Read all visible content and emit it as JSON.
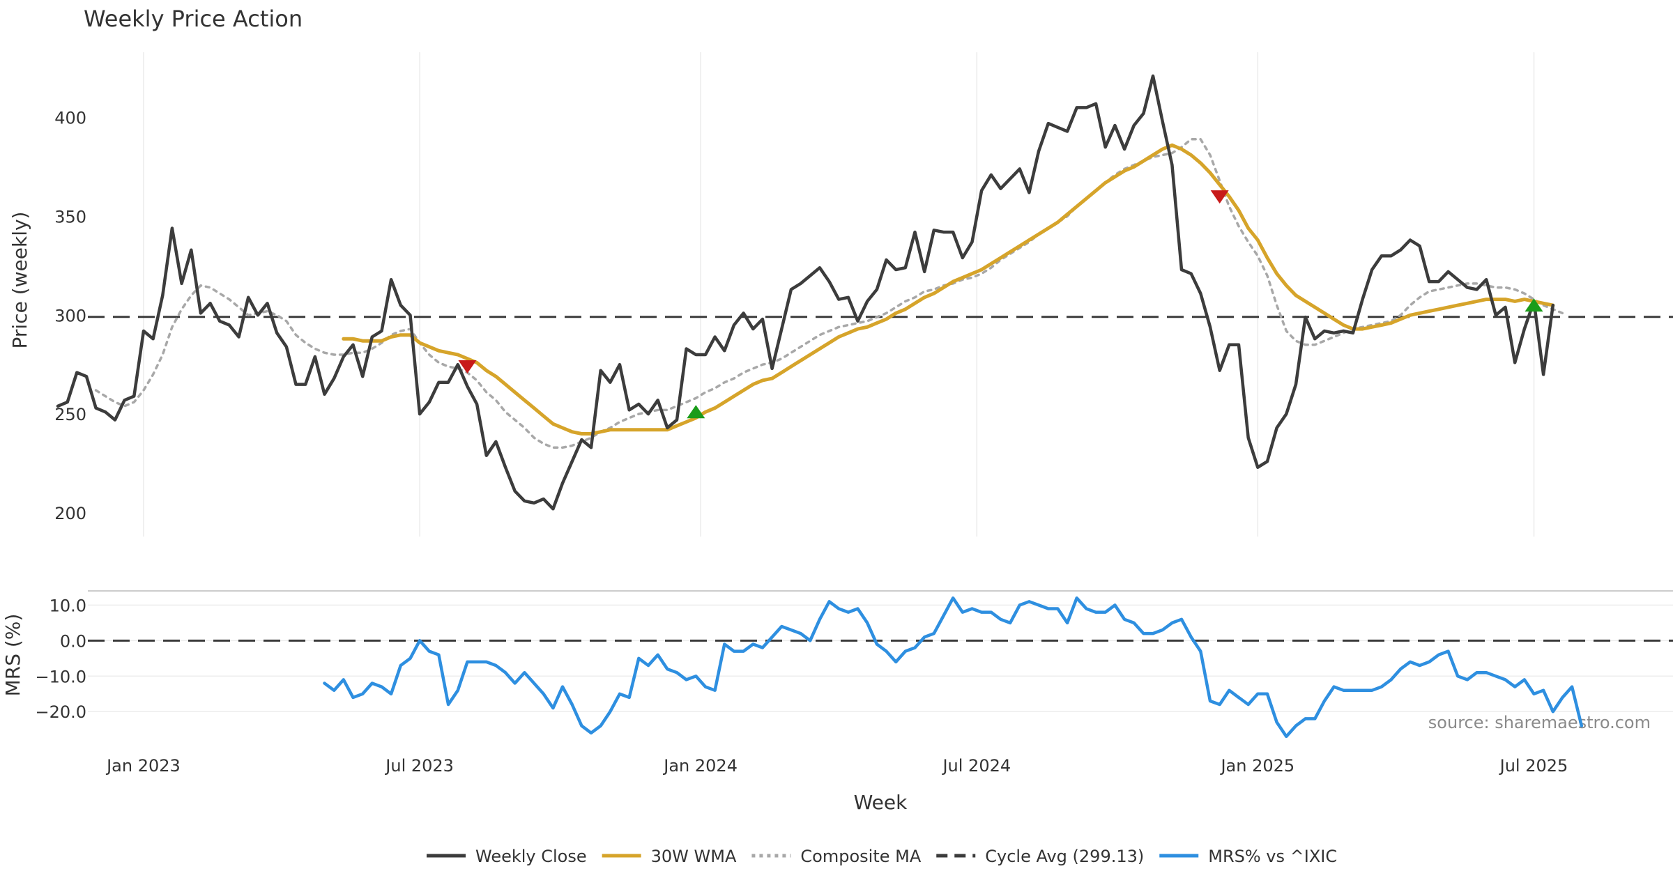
{
  "chart_data": [
    {
      "type": "line",
      "title": "Weekly Price Action",
      "xlabel": "",
      "ylabel": "Price (weekly)",
      "ylim": [
        188,
        433
      ],
      "yticks": [
        200,
        250,
        300,
        350,
        400
      ],
      "xlim": [
        0,
        183
      ],
      "x_ticks": [
        {
          "x": 9,
          "label": "Jan 2023"
        },
        {
          "x": 38,
          "label": "Jul 2023"
        },
        {
          "x": 67.5,
          "label": "Jan 2024"
        },
        {
          "x": 96.5,
          "label": "Jul 2024"
        },
        {
          "x": 126,
          "label": "Jan 2025"
        },
        {
          "x": 155,
          "label": "Jul 2025"
        }
      ],
      "series": [
        {
          "name": "Weekly Close",
          "color": "#3c3c3c",
          "style": "solid",
          "values": [
            254,
            256,
            271,
            269,
            253,
            251,
            247,
            257,
            259,
            292,
            288,
            310,
            344,
            316,
            333,
            301,
            306,
            297,
            295,
            289,
            309,
            300,
            306,
            291,
            284,
            265,
            265,
            279,
            260,
            268,
            279,
            285,
            269,
            289,
            292,
            318,
            305,
            300,
            250,
            256,
            266,
            266,
            275,
            264,
            255,
            229,
            236,
            223,
            211,
            206,
            205,
            207,
            202,
            215,
            226,
            237,
            233,
            272,
            266,
            275,
            252,
            255,
            250,
            257,
            243,
            247,
            283,
            280,
            280,
            289,
            282,
            295,
            301,
            293,
            298,
            273,
            293,
            313,
            316,
            320,
            324,
            317,
            308,
            309,
            297,
            307,
            313,
            328,
            323,
            324,
            342,
            322,
            343,
            342,
            342,
            329,
            337,
            363,
            371,
            364,
            369,
            374,
            362,
            383,
            397,
            395,
            393,
            405,
            405,
            407,
            385,
            396,
            384,
            396,
            402,
            421,
            398,
            376,
            323,
            321,
            311,
            294,
            272,
            285,
            285,
            238,
            223,
            226,
            243,
            250,
            265,
            299,
            288,
            292,
            291,
            292,
            291,
            308,
            323,
            330,
            330,
            333,
            338,
            335,
            317,
            317,
            322,
            318,
            314,
            313,
            318,
            300,
            304,
            276,
            293,
            307,
            270,
            305
          ]
        },
        {
          "name": "30W WMA",
          "color": "#d6a42a",
          "style": "solid",
          "values": [
            null,
            null,
            null,
            null,
            null,
            null,
            null,
            null,
            null,
            null,
            null,
            null,
            null,
            null,
            null,
            null,
            null,
            null,
            null,
            null,
            null,
            null,
            null,
            null,
            null,
            null,
            null,
            null,
            null,
            null,
            288,
            288,
            287,
            287,
            287,
            289,
            290,
            290,
            286,
            284,
            282,
            281,
            280,
            278,
            276,
            272,
            269,
            265,
            261,
            257,
            253,
            249,
            245,
            243,
            241,
            240,
            240,
            241,
            242,
            242,
            242,
            242,
            242,
            242,
            242,
            244,
            246,
            248,
            251,
            253,
            256,
            259,
            262,
            265,
            267,
            268,
            271,
            274,
            277,
            280,
            283,
            286,
            289,
            291,
            293,
            294,
            296,
            298,
            301,
            303,
            306,
            309,
            311,
            314,
            317,
            319,
            321,
            323,
            326,
            329,
            332,
            335,
            338,
            341,
            344,
            347,
            351,
            355,
            359,
            363,
            367,
            370,
            373,
            375,
            378,
            381,
            384,
            386,
            384,
            381,
            377,
            372,
            366,
            360,
            353,
            344,
            338,
            329,
            321,
            315,
            310,
            307,
            304,
            301,
            298,
            295,
            293,
            293,
            294,
            295,
            296,
            298,
            300,
            301,
            302,
            303,
            304,
            305,
            306,
            307,
            308,
            308,
            308,
            307,
            308,
            307,
            306,
            305
          ]
        },
        {
          "name": "Composite MA",
          "color": "#a8a8a8",
          "style": "dotted",
          "values": [
            null,
            null,
            null,
            null,
            262,
            259,
            256,
            254,
            256,
            262,
            270,
            280,
            294,
            303,
            310,
            315,
            314,
            311,
            308,
            304,
            300,
            301,
            302,
            300,
            297,
            290,
            286,
            283,
            281,
            280,
            280,
            281,
            281,
            283,
            286,
            290,
            292,
            293,
            286,
            280,
            276,
            274,
            273,
            271,
            267,
            261,
            257,
            251,
            247,
            243,
            238,
            235,
            233,
            233,
            234,
            236,
            238,
            241,
            243,
            246,
            248,
            250,
            251,
            252,
            252,
            254,
            256,
            258,
            261,
            263,
            266,
            268,
            271,
            273,
            275,
            276,
            278,
            281,
            284,
            287,
            290,
            292,
            294,
            295,
            296,
            297,
            299,
            301,
            304,
            307,
            309,
            312,
            313,
            315,
            316,
            318,
            319,
            321,
            324,
            328,
            331,
            334,
            337,
            341,
            344,
            347,
            350,
            355,
            359,
            363,
            367,
            371,
            374,
            376,
            378,
            380,
            381,
            382,
            385,
            389,
            389,
            381,
            368,
            355,
            345,
            337,
            330,
            320,
            305,
            292,
            287,
            285,
            285,
            287,
            289,
            291,
            293,
            294,
            295,
            296,
            297,
            300,
            305,
            309,
            312,
            313,
            314,
            315,
            316,
            316,
            315,
            314,
            314,
            313,
            311,
            308,
            305,
            303,
            301
          ]
        },
        {
          "name": "Cycle Avg (299.13)",
          "color": "#3c3c3c",
          "style": "dashed",
          "constant": 299.13
        }
      ],
      "markers": [
        {
          "type": "sell",
          "x": 43,
          "y": 274,
          "color": "#c81a1a"
        },
        {
          "type": "buy",
          "x": 67,
          "y": 251,
          "color": "#1a9c1a"
        },
        {
          "type": "sell",
          "x": 122,
          "y": 360,
          "color": "#c81a1a"
        },
        {
          "type": "buy",
          "x": 155,
          "y": 305,
          "color": "#1a9c1a"
        }
      ]
    },
    {
      "type": "line",
      "title": "",
      "xlabel": "Week",
      "ylabel": "MRS (%)",
      "ylim": [
        -28,
        14
      ],
      "yticks": [
        10,
        0,
        -10,
        -20
      ],
      "ytick_labels": [
        "10.0",
        "0.0",
        "−10.0",
        "−20.0"
      ],
      "series": [
        {
          "name": "MRS% vs ^IXIC",
          "color": "#2e8fe0",
          "style": "solid",
          "start_x": 28,
          "values": [
            -12,
            -14,
            -11,
            -16,
            -15,
            -12,
            -13,
            -15,
            -7,
            -5,
            0,
            -3,
            -4,
            -18,
            -14,
            -6,
            -6,
            -6,
            -7,
            -9,
            -12,
            -9,
            -12,
            -15,
            -19,
            -13,
            -18,
            -24,
            -26,
            -24,
            -20,
            -15,
            -16,
            -5,
            -7,
            -4,
            -8,
            -9,
            -11,
            -10,
            -13,
            -14,
            -1,
            -3,
            -3,
            -1,
            -2,
            1,
            4,
            3,
            2,
            0,
            6,
            11,
            9,
            8,
            9,
            5,
            -1,
            -3,
            -6,
            -3,
            -2,
            1,
            2,
            7,
            12,
            8,
            9,
            8,
            8,
            6,
            5,
            10,
            11,
            10,
            9,
            9,
            5,
            12,
            9,
            8,
            8,
            10,
            6,
            5,
            2,
            2,
            3,
            5,
            6,
            1,
            -3,
            -17,
            -18,
            -14,
            -16,
            -18,
            -15,
            -15,
            -23,
            -27,
            -24,
            -22,
            -22,
            -17,
            -13,
            -14,
            -14,
            -14,
            -14,
            -13,
            -11,
            -8,
            -6,
            -7,
            -6,
            -4,
            -3,
            -10,
            -11,
            -9,
            -9,
            -10,
            -11,
            -13,
            -11,
            -15,
            -14,
            -20,
            -16,
            -13,
            -24
          ]
        },
        {
          "name": "Zero",
          "color": "#3c3c3c",
          "style": "dashed",
          "constant": 0
        }
      ]
    }
  ],
  "annotation": "source: sharemaestro.com",
  "legend": [
    {
      "label": "Weekly Close",
      "color": "#3c3c3c",
      "style": "solid"
    },
    {
      "label": "30W WMA",
      "color": "#d6a42a",
      "style": "solid"
    },
    {
      "label": "Composite MA",
      "color": "#a8a8a8",
      "style": "dotted"
    },
    {
      "label": "Cycle Avg (299.13)",
      "color": "#3c3c3c",
      "style": "dashed"
    },
    {
      "label": "MRS% vs ^IXIC",
      "color": "#2e8fe0",
      "style": "solid"
    }
  ]
}
